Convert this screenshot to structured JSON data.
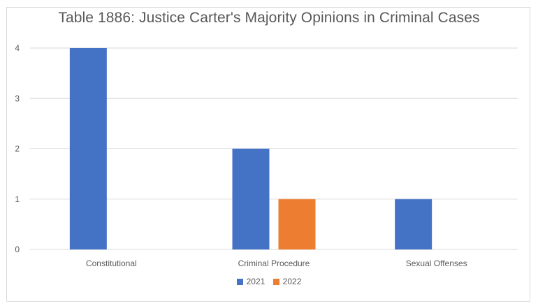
{
  "chart_data": {
    "type": "bar",
    "title": "Table 1886: Justice Carter's Majority Opinions in Criminal Cases",
    "categories": [
      "Constitutional",
      "Criminal Procedure",
      "Sexual Offenses"
    ],
    "series": [
      {
        "name": "2021",
        "values": [
          4,
          2,
          1
        ],
        "color": "#4472c4"
      },
      {
        "name": "2022",
        "values": [
          0,
          1,
          0
        ],
        "color": "#ed7d31"
      }
    ],
    "y_ticks": [
      0,
      1,
      2,
      3,
      4
    ],
    "y_tick_labels": [
      "0",
      "1",
      "2",
      "3",
      "4"
    ],
    "ylim": [
      0,
      4
    ],
    "grid": true,
    "legend_position": "bottom",
    "xlabel": "",
    "ylabel": ""
  }
}
